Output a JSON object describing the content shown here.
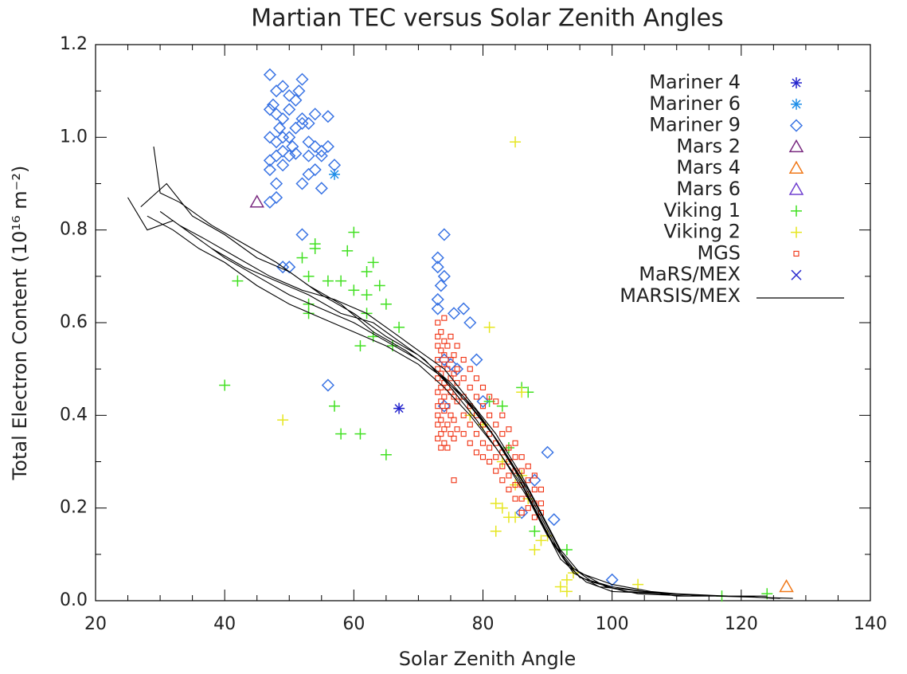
{
  "chart_data": {
    "type": "scatter",
    "title": "Martian TEC versus Solar Zenith Angles",
    "xlabel": "Solar Zenith Angle",
    "ylabel": "Total Electron Content (10¹⁶ m⁻²)",
    "xlim": [
      20,
      140
    ],
    "ylim": [
      0,
      1.2
    ],
    "xticks": [
      20,
      40,
      60,
      80,
      100,
      120,
      140
    ],
    "yticks": [
      {
        "value": 0,
        "label": "0.0"
      },
      0.2,
      0.4,
      0.6,
      0.8,
      {
        "value": 1,
        "label": "1.0"
      },
      1.2
    ],
    "minor_xticks": [
      25,
      30,
      35,
      45,
      50,
      55,
      65,
      70,
      75,
      85,
      90,
      95,
      105,
      110,
      115,
      125,
      130,
      135
    ],
    "minor_yticks": [
      0.1,
      0.3,
      0.5,
      0.7,
      0.9,
      1.1
    ],
    "legend": "upper right",
    "series": [
      {
        "name": "Mariner 4",
        "marker": "star",
        "color": "#2222cc",
        "x": [
          67
        ],
        "y": [
          0.415
        ]
      },
      {
        "name": "Mariner 6",
        "marker": "star",
        "color": "#1e8ee8",
        "x": [
          57
        ],
        "y": [
          0.92
        ]
      },
      {
        "name": "Mariner 9",
        "marker": "diamond",
        "color": "#3a74e4",
        "x": [
          47,
          48,
          47.5,
          49,
          50,
          51,
          52,
          51.5,
          47,
          48,
          49,
          50,
          52,
          53,
          54,
          56,
          47,
          48,
          49,
          50,
          51,
          52,
          53,
          54,
          55,
          56,
          57,
          47,
          48,
          49,
          50,
          51,
          53,
          54,
          55,
          52,
          53,
          55,
          47,
          48,
          47,
          48,
          49,
          50.5,
          48.5,
          52,
          56,
          49,
          50,
          74,
          73,
          73,
          73.5,
          74,
          73,
          73,
          75.5,
          77,
          78,
          74,
          75,
          76,
          79,
          74,
          80,
          90,
          88,
          86,
          91,
          100
        ],
        "y": [
          1.135,
          1.1,
          1.07,
          1.11,
          1.09,
          1.08,
          1.125,
          1.1,
          1.06,
          1.05,
          1.04,
          1.06,
          1.04,
          1.03,
          1.05,
          1.045,
          1,
          0.99,
          1,
          1,
          1.02,
          1.03,
          0.99,
          0.98,
          0.97,
          0.98,
          0.94,
          0.95,
          0.96,
          0.97,
          0.96,
          0.965,
          0.96,
          0.93,
          0.96,
          0.9,
          0.92,
          0.89,
          0.93,
          0.9,
          0.86,
          0.87,
          0.94,
          0.98,
          1.02,
          0.79,
          0.465,
          0.72,
          0.72,
          0.79,
          0.74,
          0.72,
          0.68,
          0.7,
          0.65,
          0.63,
          0.62,
          0.63,
          0.6,
          0.52,
          0.51,
          0.5,
          0.52,
          0.42,
          0.43,
          0.32,
          0.26,
          0.19,
          0.175,
          0.045
        ]
      },
      {
        "name": "Mars 2",
        "marker": "triangle",
        "color": "#7a2a80",
        "x": [
          45
        ],
        "y": [
          0.86
        ]
      },
      {
        "name": "Mars 4",
        "marker": "triangle",
        "color": "#f07818",
        "x": [
          127
        ],
        "y": [
          0.03
        ]
      },
      {
        "name": "Mars 6",
        "marker": "triangle",
        "color": "#7040d0",
        "x": [],
        "y": []
      },
      {
        "name": "Viking 1",
        "marker": "plus",
        "color": "#40e020",
        "x": [
          42,
          40,
          52,
          53,
          54,
          54,
          53,
          53,
          56,
          57,
          58,
          59,
          60,
          58,
          61,
          61,
          62,
          62,
          63,
          62,
          63,
          64,
          65,
          65,
          66,
          67,
          60,
          83,
          86,
          87,
          88,
          93,
          117,
          124,
          81,
          84
        ],
        "y": [
          0.69,
          0.465,
          0.74,
          0.7,
          0.77,
          0.76,
          0.64,
          0.62,
          0.69,
          0.42,
          0.36,
          0.755,
          0.795,
          0.69,
          0.36,
          0.55,
          0.66,
          0.71,
          0.73,
          0.62,
          0.57,
          0.68,
          0.64,
          0.315,
          0.55,
          0.59,
          0.67,
          0.42,
          0.46,
          0.45,
          0.15,
          0.11,
          0.01,
          0.015,
          0.43,
          0.33
        ]
      },
      {
        "name": "Viking 2",
        "marker": "plus",
        "color": "#e6e620",
        "x": [
          49,
          85,
          81,
          82,
          83,
          82,
          84,
          85,
          86,
          88,
          89,
          90,
          92,
          93,
          93,
          94,
          104,
          85,
          83,
          86,
          87,
          80,
          78
        ],
        "y": [
          0.39,
          0.99,
          0.59,
          0.21,
          0.2,
          0.15,
          0.18,
          0.18,
          0.45,
          0.11,
          0.13,
          0.14,
          0.03,
          0.02,
          0.045,
          0.06,
          0.035,
          0.25,
          0.3,
          0.27,
          0.22,
          0.38,
          0.4
        ]
      },
      {
        "name": "MGS",
        "marker": "square",
        "color": "#f03010",
        "x": [
          73,
          73,
          73,
          73,
          73,
          73,
          73,
          73,
          73,
          73,
          73,
          73.5,
          73.5,
          73.5,
          73.5,
          73.5,
          73.5,
          73.5,
          73.5,
          74,
          74,
          74,
          74,
          74,
          74,
          74,
          74,
          74,
          74.5,
          74.5,
          74.5,
          74.5,
          74.5,
          74.5,
          75,
          75,
          75,
          75,
          75,
          75,
          75.5,
          75.5,
          75.5,
          75.5,
          75.5,
          75.5,
          76,
          76,
          76,
          76,
          76,
          77,
          77,
          77,
          77,
          77,
          78,
          78,
          78,
          78,
          78,
          79,
          79,
          79,
          79,
          79,
          80,
          80,
          80,
          80,
          80,
          81,
          81,
          81,
          81,
          81,
          82,
          82,
          82,
          82,
          82,
          83,
          83,
          83,
          83,
          83,
          84,
          84,
          84,
          84,
          84,
          85,
          85,
          85,
          85,
          85,
          86,
          86,
          86,
          86,
          86,
          87,
          87,
          87,
          87,
          88,
          88,
          88,
          88,
          89,
          89,
          89
        ],
        "y": [
          0.6,
          0.57,
          0.55,
          0.52,
          0.5,
          0.48,
          0.45,
          0.42,
          0.4,
          0.38,
          0.35,
          0.58,
          0.54,
          0.49,
          0.46,
          0.43,
          0.39,
          0.36,
          0.33,
          0.61,
          0.56,
          0.53,
          0.51,
          0.47,
          0.44,
          0.41,
          0.37,
          0.34,
          0.55,
          0.5,
          0.46,
          0.42,
          0.38,
          0.33,
          0.57,
          0.52,
          0.48,
          0.45,
          0.4,
          0.36,
          0.53,
          0.49,
          0.44,
          0.39,
          0.35,
          0.26,
          0.55,
          0.5,
          0.47,
          0.43,
          0.37,
          0.52,
          0.48,
          0.44,
          0.4,
          0.36,
          0.5,
          0.46,
          0.42,
          0.38,
          0.34,
          0.48,
          0.44,
          0.4,
          0.36,
          0.32,
          0.46,
          0.42,
          0.38,
          0.34,
          0.31,
          0.44,
          0.4,
          0.36,
          0.33,
          0.3,
          0.43,
          0.38,
          0.34,
          0.31,
          0.28,
          0.4,
          0.36,
          0.32,
          0.29,
          0.26,
          0.37,
          0.33,
          0.3,
          0.27,
          0.24,
          0.34,
          0.31,
          0.28,
          0.25,
          0.22,
          0.31,
          0.28,
          0.25,
          0.22,
          0.19,
          0.29,
          0.26,
          0.23,
          0.2,
          0.27,
          0.24,
          0.21,
          0.18,
          0.24,
          0.21,
          0.19
        ]
      },
      {
        "name": "MaRS/MEX",
        "marker": "x",
        "color": "#3030d0",
        "x": [],
        "y": []
      },
      {
        "name": "MARSIS/MEX",
        "marker": "line",
        "color": "#000000",
        "x": [
          25,
          28,
          32,
          36,
          40,
          45,
          50,
          55,
          60,
          65,
          70,
          74,
          78,
          82,
          86,
          89,
          92,
          95,
          100,
          105,
          110,
          120,
          125,
          null,
          29,
          30,
          33,
          38,
          43,
          48,
          53,
          58,
          63,
          68,
          73,
          77,
          81,
          85,
          88,
          91,
          94,
          98,
          105,
          115,
          124,
          null,
          27,
          31,
          35,
          40,
          45,
          50,
          55,
          60,
          65,
          70,
          75,
          79,
          83,
          87,
          90,
          93,
          97,
          102,
          110,
          118,
          126,
          null,
          28,
          32,
          36,
          40,
          45,
          50,
          55,
          60,
          65,
          70,
          74,
          78,
          82,
          86,
          89,
          92,
          96,
          100,
          108,
          116,
          128,
          null,
          30,
          34,
          38,
          43,
          48,
          53,
          58,
          63,
          67,
          71,
          75,
          79,
          83,
          87,
          90,
          94,
          99,
          104,
          112,
          122,
          null,
          33,
          37,
          42,
          47,
          52,
          57,
          62,
          66,
          70,
          74,
          78,
          82,
          86,
          89,
          92,
          95,
          100,
          106,
          114,
          124
        ],
        "y": [
          0.87,
          0.8,
          0.82,
          0.78,
          0.74,
          0.7,
          0.66,
          0.63,
          0.6,
          0.56,
          0.52,
          0.48,
          0.42,
          0.35,
          0.26,
          0.18,
          0.1,
          0.05,
          0.03,
          0.02,
          0.01,
          0.01,
          0.005,
          null,
          0.98,
          0.88,
          0.86,
          0.81,
          0.77,
          0.73,
          0.68,
          0.64,
          0.58,
          0.54,
          0.49,
          0.44,
          0.37,
          0.28,
          0.2,
          0.12,
          0.06,
          0.03,
          0.02,
          0.01,
          0.01,
          null,
          0.85,
          0.9,
          0.83,
          0.79,
          0.74,
          0.71,
          0.66,
          0.62,
          0.57,
          0.53,
          0.47,
          0.41,
          0.33,
          0.24,
          0.16,
          0.08,
          0.04,
          0.02,
          0.015,
          0.01,
          0.005,
          null,
          0.83,
          0.8,
          0.76,
          0.73,
          0.68,
          0.64,
          0.61,
          0.58,
          0.55,
          0.51,
          0.46,
          0.4,
          0.33,
          0.25,
          0.17,
          0.09,
          0.04,
          0.02,
          0.015,
          0.01,
          0.005,
          null,
          0.84,
          0.8,
          0.76,
          0.72,
          0.69,
          0.66,
          0.62,
          0.6,
          0.56,
          0.52,
          0.46,
          0.39,
          0.31,
          0.22,
          0.14,
          0.07,
          0.03,
          0.015,
          0.01,
          0.01,
          null,
          0.81,
          0.78,
          0.74,
          0.7,
          0.67,
          0.65,
          0.62,
          0.58,
          0.54,
          0.5,
          0.43,
          0.36,
          0.27,
          0.19,
          0.11,
          0.06,
          0.035,
          0.02,
          0.01,
          0.01
        ]
      }
    ]
  }
}
